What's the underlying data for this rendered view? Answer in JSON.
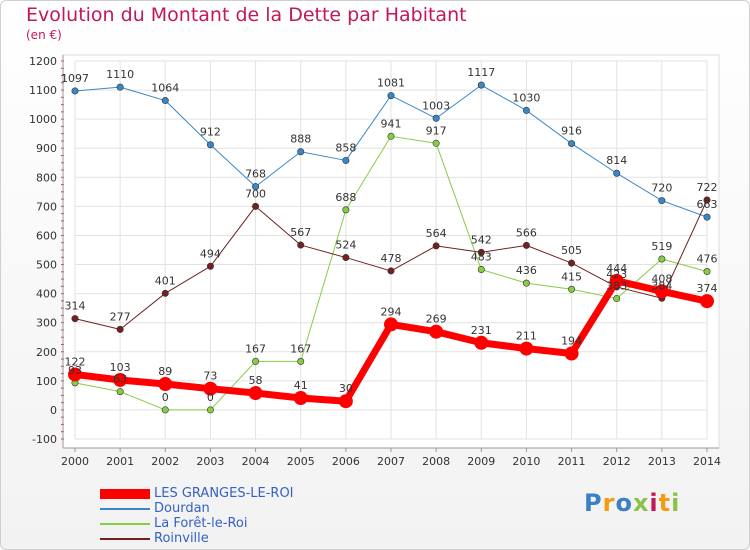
{
  "title": "Evolution du Montant de la Dette par Habitant",
  "subtitle": "(en €)",
  "logo": {
    "text": "Proxiti",
    "colors": [
      "#3b7fc4",
      "#f39c12",
      "#3b7fc4",
      "#8bc34a",
      "#c2185b",
      "#f39c12",
      "#8bc34a"
    ]
  },
  "chart_data": {
    "type": "line",
    "categories": [
      "2000",
      "2001",
      "2002",
      "2003",
      "2004",
      "2005",
      "2006",
      "2007",
      "2008",
      "2009",
      "2010",
      "2011",
      "2012",
      "2013",
      "2014"
    ],
    "ylim": [
      -100,
      1200
    ],
    "yticks": [
      -100,
      0,
      100,
      200,
      300,
      400,
      500,
      600,
      700,
      800,
      900,
      1000,
      1100,
      1200
    ],
    "grid": true,
    "legend_position": "bottom-left",
    "series": [
      {
        "name": "Dourdan",
        "color": "#3a87c8",
        "lineWidth": 1,
        "markerRadius": 3.2,
        "values": [
          1097,
          1110,
          1064,
          912,
          768,
          888,
          858,
          1081,
          1003,
          1117,
          1030,
          916,
          814,
          720,
          663
        ],
        "labels": [
          "1097",
          "1110",
          "1064",
          "912",
          "768",
          "888",
          "858",
          "1081",
          "1003",
          "1117",
          "1030",
          "916",
          "814",
          "720",
          "663"
        ]
      },
      {
        "name": "La Forêt-le-Roi",
        "color": "#88cc44",
        "lineWidth": 1,
        "markerRadius": 3.2,
        "values": [
          93,
          63,
          0,
          0,
          167,
          167,
          688,
          941,
          917,
          483,
          436,
          415,
          383,
          519,
          476
        ],
        "labels": [
          "93",
          "63",
          "0",
          "0",
          "167",
          "167",
          "688",
          "941",
          "917",
          "483",
          "436",
          "415",
          "383",
          "519",
          "476"
        ]
      },
      {
        "name": "Roinville",
        "color": "#722020",
        "lineWidth": 1,
        "markerRadius": 3.2,
        "values": [
          314,
          277,
          401,
          494,
          700,
          567,
          524,
          478,
          564,
          542,
          566,
          505,
          423,
          384,
          722
        ],
        "labels": [
          "314",
          "277",
          "401",
          "494",
          "700",
          "567",
          "524",
          "478",
          "564",
          "542",
          "566",
          "505",
          "423",
          "384",
          "722"
        ]
      },
      {
        "name": "LES GRANGES-LE-ROI",
        "color": "#ff0000",
        "lineWidth": 7,
        "markerRadius": 7,
        "values": [
          122,
          103,
          89,
          73,
          58,
          41,
          30,
          294,
          269,
          231,
          211,
          194,
          444,
          408,
          374
        ],
        "labels": [
          "122",
          "103",
          "89",
          "73",
          "58",
          "41",
          "30",
          "294",
          "269",
          "231",
          "211",
          "194",
          "444",
          "408",
          "374"
        ]
      }
    ],
    "legend_order": [
      "LES GRANGES-LE-ROI",
      "Dourdan",
      "La Forêt-le-Roi",
      "Roinville"
    ]
  }
}
